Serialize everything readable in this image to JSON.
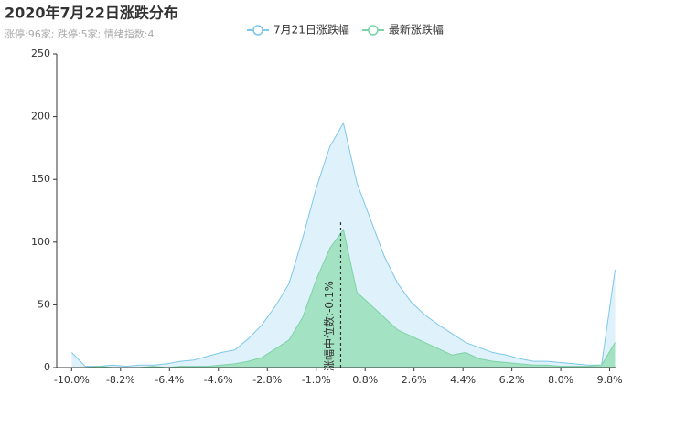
{
  "chart_data": {
    "type": "area",
    "title": "2020年7月22日涨跌分布",
    "subtitle": "涨停:96家; 跌停:5家; 情绪指数:4",
    "x": [
      -10,
      -9.5,
      -9,
      -8.5,
      -8,
      -7.5,
      -7,
      -6.5,
      -6,
      -5.5,
      -5,
      -4.5,
      -4,
      -3.5,
      -3,
      -2.5,
      -2,
      -1.5,
      -1,
      -0.5,
      0,
      0.5,
      1,
      1.5,
      2,
      2.5,
      3,
      3.5,
      4,
      4.5,
      5,
      5.5,
      6,
      6.5,
      7,
      7.5,
      8,
      8.5,
      9,
      9.5,
      10
    ],
    "series": [
      {
        "name": "7月21日涨跌幅",
        "color": "#7ec8e9",
        "fill": "#dff1fa",
        "values": [
          12,
          1,
          1,
          2,
          1,
          2,
          2,
          3,
          5,
          6,
          9,
          12,
          14,
          23,
          34,
          49,
          67,
          103,
          143,
          176,
          195,
          147,
          118,
          89,
          67,
          52,
          42,
          34,
          27,
          20,
          16,
          12,
          10,
          7,
          5,
          5,
          4,
          3,
          2,
          2,
          78
        ]
      },
      {
        "name": "最新涨跌幅",
        "color": "#7dd3a6",
        "fill": "#a3e2c3",
        "values": [
          0,
          0,
          1,
          0,
          0,
          0,
          1,
          0,
          1,
          1,
          1,
          2,
          3,
          5,
          8,
          15,
          22,
          40,
          70,
          95,
          110,
          60,
          50,
          40,
          30,
          25,
          20,
          15,
          10,
          12,
          7,
          5,
          4,
          3,
          2,
          2,
          1,
          1,
          1,
          2,
          20
        ]
      }
    ],
    "median": {
      "value": -0.1,
      "label": "涨幅中位数:-0.1%"
    },
    "xlim": [
      -10.55,
      10.05
    ],
    "xticks": [
      {
        "value": -10,
        "label": "-10.0%"
      },
      {
        "value": -8.2,
        "label": "-8.2%"
      },
      {
        "value": -6.4,
        "label": "-6.4%"
      },
      {
        "value": -4.6,
        "label": "-4.6%"
      },
      {
        "value": -2.8,
        "label": "-2.8%"
      },
      {
        "value": -1,
        "label": "-1.0%"
      },
      {
        "value": 0.8,
        "label": "0.8%"
      },
      {
        "value": 2.6,
        "label": "2.6%"
      },
      {
        "value": 4.4,
        "label": "4.4%"
      },
      {
        "value": 6.2,
        "label": "6.2%"
      },
      {
        "value": 8,
        "label": "8.0%"
      },
      {
        "value": 9.8,
        "label": "9.8%"
      }
    ],
    "ylim": [
      0,
      250
    ],
    "yticks": [
      0,
      50,
      100,
      150,
      200,
      250
    ]
  }
}
